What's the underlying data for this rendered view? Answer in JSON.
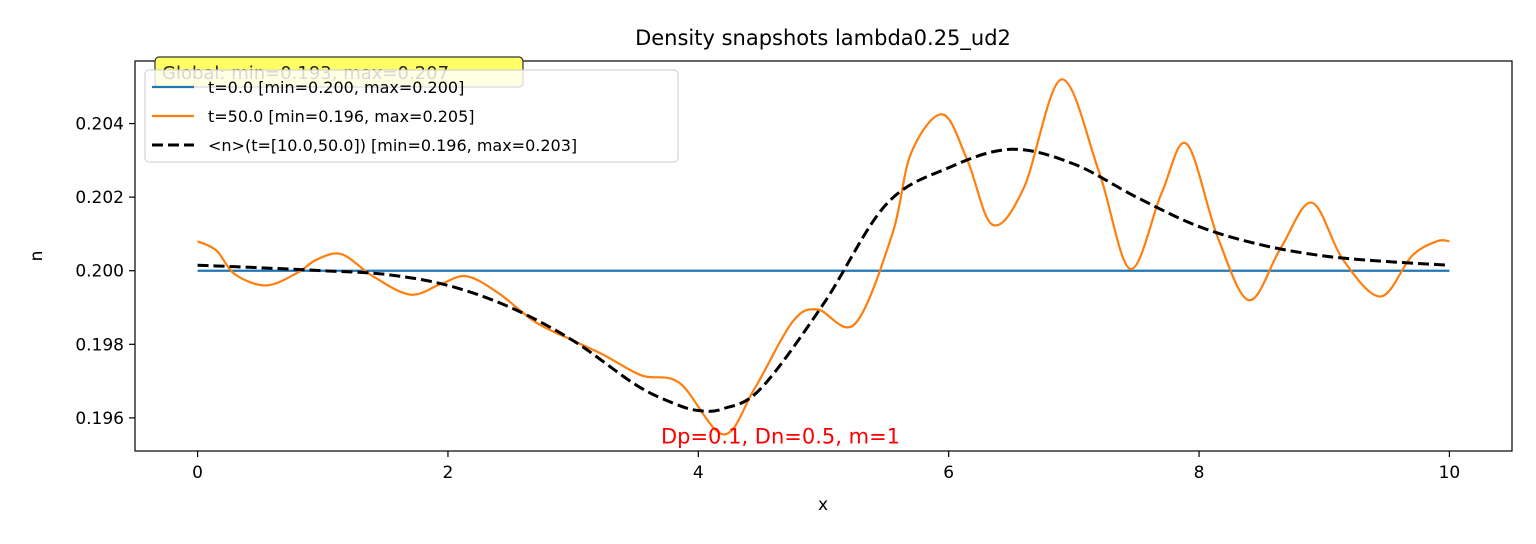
{
  "chart_data": {
    "type": "line",
    "title": "Density snapshots  lambda0.25_ud2",
    "xlabel": "x",
    "ylabel": "n",
    "xlim": [
      -0.5,
      10.5
    ],
    "ylim": [
      0.1951,
      0.2057
    ],
    "xticks": [
      0,
      2,
      4,
      6,
      8,
      10
    ],
    "xtick_labels": [
      "0",
      "2",
      "4",
      "6",
      "8",
      "10"
    ],
    "yticks": [
      0.196,
      0.198,
      0.2,
      0.202,
      0.204
    ],
    "ytick_labels": [
      "0.196",
      "0.198",
      "0.200",
      "0.202",
      "0.204"
    ],
    "grid": false,
    "legend_position": "top-left",
    "global_box": {
      "text": "Global: min=0.193, max=0.207",
      "color": "#ffff66"
    },
    "annotation": {
      "text": "Dp=0.1, Dn=0.5, m=1",
      "color": "#ff0000",
      "x": 5.0,
      "y": 0.1955
    },
    "series": [
      {
        "name": "t=0.0 [min=0.200, max=0.200]",
        "color": "#1f77b4",
        "style": "solid",
        "x": [
          0,
          10
        ],
        "y": [
          0.2,
          0.2
        ]
      },
      {
        "name": "t=50.0 [min=0.196, max=0.205]",
        "color": "#ff7f0e",
        "style": "solid",
        "x": [
          0.0,
          0.15,
          0.3,
          0.55,
          0.8,
          0.95,
          1.15,
          1.4,
          1.7,
          1.95,
          2.15,
          2.4,
          2.7,
          3.0,
          3.25,
          3.55,
          3.85,
          4.2,
          4.45,
          4.75,
          4.95,
          5.25,
          5.55,
          5.7,
          5.95,
          6.15,
          6.35,
          6.6,
          6.9,
          7.2,
          7.45,
          7.7,
          7.9,
          8.15,
          8.4,
          8.65,
          8.9,
          9.15,
          9.45,
          9.7,
          9.9,
          10.0
        ],
        "y": [
          0.2008,
          0.20055,
          0.1999,
          0.1996,
          0.19995,
          0.2003,
          0.20045,
          0.19985,
          0.19935,
          0.19965,
          0.19985,
          0.1994,
          0.1986,
          0.1981,
          0.1977,
          0.19715,
          0.19695,
          0.19555,
          0.1968,
          0.1986,
          0.19895,
          0.19855,
          0.201,
          0.2032,
          0.20425,
          0.203,
          0.20125,
          0.20225,
          0.2052,
          0.2027,
          0.20005,
          0.2021,
          0.20345,
          0.2009,
          0.1992,
          0.2006,
          0.20185,
          0.2003,
          0.1993,
          0.2004,
          0.2008,
          0.2008
        ]
      },
      {
        "name": "<n>(t=[10.0,50.0]) [min=0.196, max=0.203]",
        "color": "#000000",
        "style": "dashed",
        "x": [
          0.0,
          0.5,
          1.0,
          1.5,
          2.0,
          2.5,
          3.0,
          3.5,
          3.8,
          4.0,
          4.2,
          4.5,
          5.0,
          5.5,
          6.0,
          6.5,
          7.0,
          7.5,
          8.0,
          8.5,
          9.0,
          9.5,
          10.0
        ],
        "y": [
          0.20015,
          0.20008,
          0.2,
          0.1999,
          0.1996,
          0.199,
          0.1981,
          0.1969,
          0.1964,
          0.1962,
          0.19625,
          0.1968,
          0.1991,
          0.2018,
          0.2028,
          0.2033,
          0.2029,
          0.202,
          0.2012,
          0.2007,
          0.2004,
          0.20025,
          0.20015
        ]
      }
    ]
  }
}
